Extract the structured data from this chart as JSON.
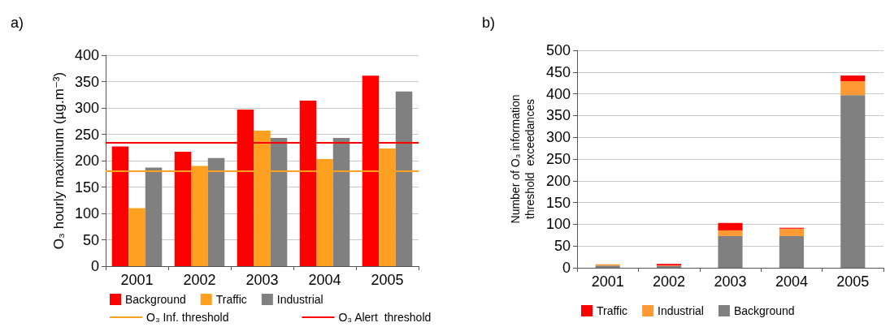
{
  "chart_data": [
    {
      "type": "bar",
      "title": "a)",
      "ylabel": "O₃ hourly maximum (µg.m⁻³)",
      "categories": [
        "2001",
        "2002",
        "2003",
        "2004",
        "2005"
      ],
      "series": [
        {
          "name": "Background",
          "color": "#ff0000",
          "values": [
            227,
            217,
            297,
            314,
            361
          ]
        },
        {
          "name": "Traffic",
          "color": "#ffa020",
          "values": [
            110,
            190,
            257,
            203,
            223
          ]
        },
        {
          "name": "Industrial",
          "color": "#808080",
          "values": [
            187,
            205,
            243,
            243,
            331
          ]
        }
      ],
      "ylim": [
        0,
        400
      ],
      "yticks": [
        0,
        50,
        100,
        150,
        200,
        250,
        300,
        350,
        400
      ],
      "grid": "y",
      "legend": "bottom",
      "ref_lines": [
        {
          "axis": "y",
          "value": 180,
          "label": "O₃ Inf. threshold",
          "color": "#ffa020"
        },
        {
          "axis": "y",
          "value": 235,
          "label": "O₃ Alert  threshold",
          "color": "#ff0000"
        }
      ]
    },
    {
      "type": "bar",
      "title": "b)",
      "ylabel": "Number of O₃ information\nthreshold  exceedances",
      "categories": [
        "2001",
        "2002",
        "2003",
        "2004",
        "2005"
      ],
      "stacked": true,
      "series": [
        {
          "name": "Background",
          "color": "#808080",
          "values": [
            5,
            4,
            73,
            73,
            397
          ]
        },
        {
          "name": "Industrial",
          "color": "#ff9933",
          "values": [
            3,
            1,
            13,
            17,
            32
          ]
        },
        {
          "name": "Traffic",
          "color": "#ff0000",
          "values": [
            0,
            4,
            17,
            2,
            13
          ]
        }
      ],
      "ylim": [
        0,
        500
      ],
      "yticks": [
        0,
        50,
        100,
        150,
        200,
        250,
        300,
        350,
        400,
        450,
        500
      ],
      "grid": "y",
      "legend": "bottom"
    }
  ]
}
